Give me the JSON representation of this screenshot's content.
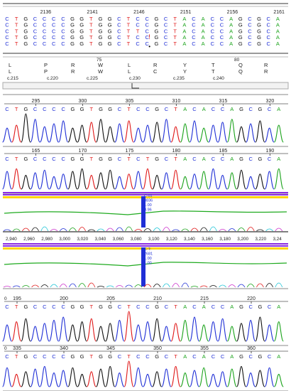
{
  "colors": {
    "A": "#1ba31b",
    "C": "#1f2fd6",
    "G": "#111111",
    "T": "#e01818",
    "purple": "#8a2be2",
    "yellow": "#ffd400",
    "trace_green": "#1faa1f",
    "peak_blue": "#1f2fd6"
  },
  "alignment": {
    "position_labels": [
      "2136",
      "2141",
      "2146",
      "2151",
      "2156",
      "2161"
    ],
    "rows": [
      "CTGCCCCGGTGGCTCCGCTACACCAGCGCA",
      "CTGCCCCGGTGGCTCCGCTACACCAGCGCA",
      "CTGCCCCGGTGGCTTCGCTACACCAGCGCA",
      "CTGCCCCGGTGGCTCCGCTACACCAGCGCA",
      "CTGCCCCGGTGGCTCCGCTACACCAGCGCA"
    ]
  },
  "protein": {
    "codon_numbers": [
      "75",
      "80"
    ],
    "row1": [
      "L",
      "P",
      "R",
      "W",
      "L",
      "R",
      "Y",
      "T",
      "Q",
      "R"
    ],
    "row2": [
      "L",
      "P",
      "R",
      "W",
      "L",
      "C",
      "Y",
      "T",
      "Q",
      "R"
    ],
    "cdna_labels": [
      "c.215",
      "c.220",
      "c.225",
      "c.230",
      "c.235",
      "c.240"
    ]
  },
  "tracks": [
    {
      "seq": "CTGCCCCGGTGGCTCCGCTACACCAGCGCA",
      "pos_labels": [
        "295",
        "300",
        "305",
        "310",
        "315",
        "320"
      ]
    },
    {
      "seq": "CTGCCCCGGTGGCTCTGCTACACCAGCGCA",
      "pos_labels": [
        "165",
        "170",
        "175",
        "180",
        "185",
        "190"
      ]
    },
    {
      "seq": "CTGCCCCGGTGGCTCCGCTACACCAGCGCA",
      "pos_labels": [
        "195",
        "200",
        "205",
        "210",
        "215",
        "220"
      ],
      "left_label": "0"
    },
    {
      "seq": "CTGCCCCGGTGGCTCCGCTACACCAGCGCA",
      "pos_labels": [
        "335",
        "340",
        "345",
        "350",
        "355",
        "360"
      ],
      "left_label": "0"
    }
  ],
  "analysis": {
    "marker1": [
      "C:01",
      "3836",
      "1.00",
      "0.96"
    ],
    "marker2": [
      "C:T:",
      "2681",
      "1.00",
      "1.00"
    ],
    "axis_ticks": [
      "2,940",
      "2,960",
      "2,980",
      "3,000",
      "3,020",
      "3,040",
      "3,060",
      "3,080",
      "3,100",
      "3,120",
      "3,140",
      "3,160",
      "3,180",
      "3,200",
      "3,220",
      "3,24"
    ]
  }
}
